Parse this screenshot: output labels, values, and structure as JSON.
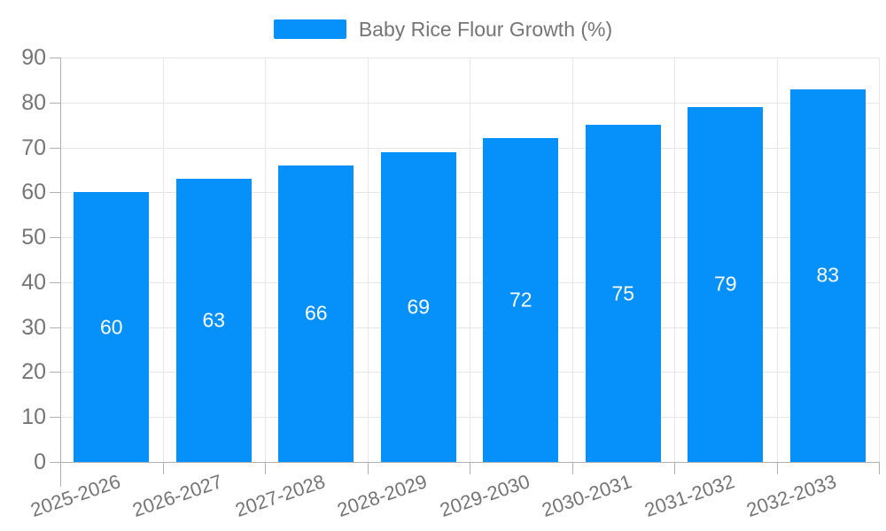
{
  "legend": {
    "label": "Baby Rice Flour Growth (%)"
  },
  "colors": {
    "bar": "#0590fa",
    "grid": "#e6e6e6",
    "axis": "#b0b0b0",
    "tick_text": "#757575",
    "legend_text": "#757575",
    "value_text": "#ffffff",
    "background": "#ffffff"
  },
  "chart_data": {
    "type": "bar",
    "title": "Baby Rice Flour Growth (%)",
    "categories": [
      "2025-2026",
      "2026-2027",
      "2027-2028",
      "2028-2029",
      "2029-2030",
      "2030-2031",
      "2031-2032",
      "2032-2033"
    ],
    "values": [
      60,
      63,
      66,
      69,
      72,
      75,
      79,
      83
    ],
    "xlabel": "",
    "ylabel": "",
    "ylim": [
      0,
      90
    ],
    "ytick_step": 10,
    "yticks": [
      0,
      10,
      20,
      30,
      40,
      50,
      60,
      70,
      80,
      90
    ],
    "grid": true,
    "vertical_grid": true,
    "legend_position": "top-center",
    "value_labels": "inside-middle",
    "x_label_rotation_deg": -19
  }
}
